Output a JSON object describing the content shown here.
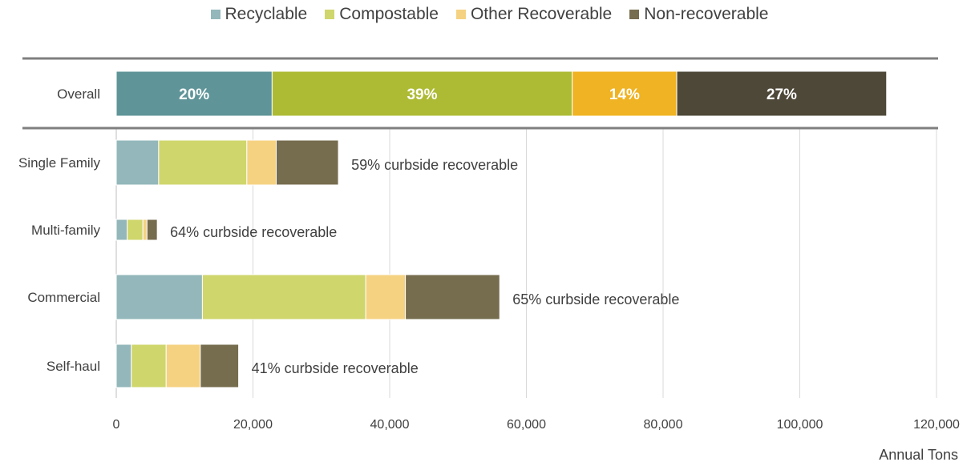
{
  "chart_data": {
    "type": "bar",
    "orientation": "horizontal",
    "stacked": true,
    "categories": [
      "Overall",
      "Single Family",
      "Multi-family",
      "Commercial",
      "Self-haul"
    ],
    "series": [
      {
        "name": "Recyclable",
        "color": "#5f9498",
        "light_color": "#93b7ba",
        "values": [
          22800,
          6200,
          1600,
          12600,
          2200
        ]
      },
      {
        "name": "Compostable",
        "color": "#adbb34",
        "light_color": "#cfd66c",
        "values": [
          43900,
          12900,
          2300,
          23900,
          5100
        ]
      },
      {
        "name": "Other Recoverable",
        "color": "#f0b323",
        "light_color": "#f5d282",
        "values": [
          15300,
          4300,
          600,
          5800,
          5000
        ]
      },
      {
        "name": "Non-recoverable",
        "color": "#4e4838",
        "light_color": "#766c4e",
        "values": [
          30700,
          9100,
          1500,
          13800,
          5600
        ]
      }
    ],
    "segment_labels": {
      "Overall": [
        "20%",
        "39%",
        "14%",
        "27%"
      ]
    },
    "annotations": [
      "",
      "59% curbside recoverable",
      "64% curbside recoverable",
      "65% curbside recoverable",
      "41% curbside recoverable"
    ],
    "x_ticks": [
      0,
      20000,
      40000,
      60000,
      80000,
      100000,
      120000
    ],
    "x_tick_labels": [
      "0",
      "20,000",
      "40,000",
      "60,000",
      "80,000",
      "100,000",
      "120,000"
    ],
    "xlim": [
      0,
      120000
    ],
    "xlabel": "Annual Tons",
    "ylabel": "",
    "title": "",
    "grid": "vertical",
    "legend_position": "top"
  }
}
